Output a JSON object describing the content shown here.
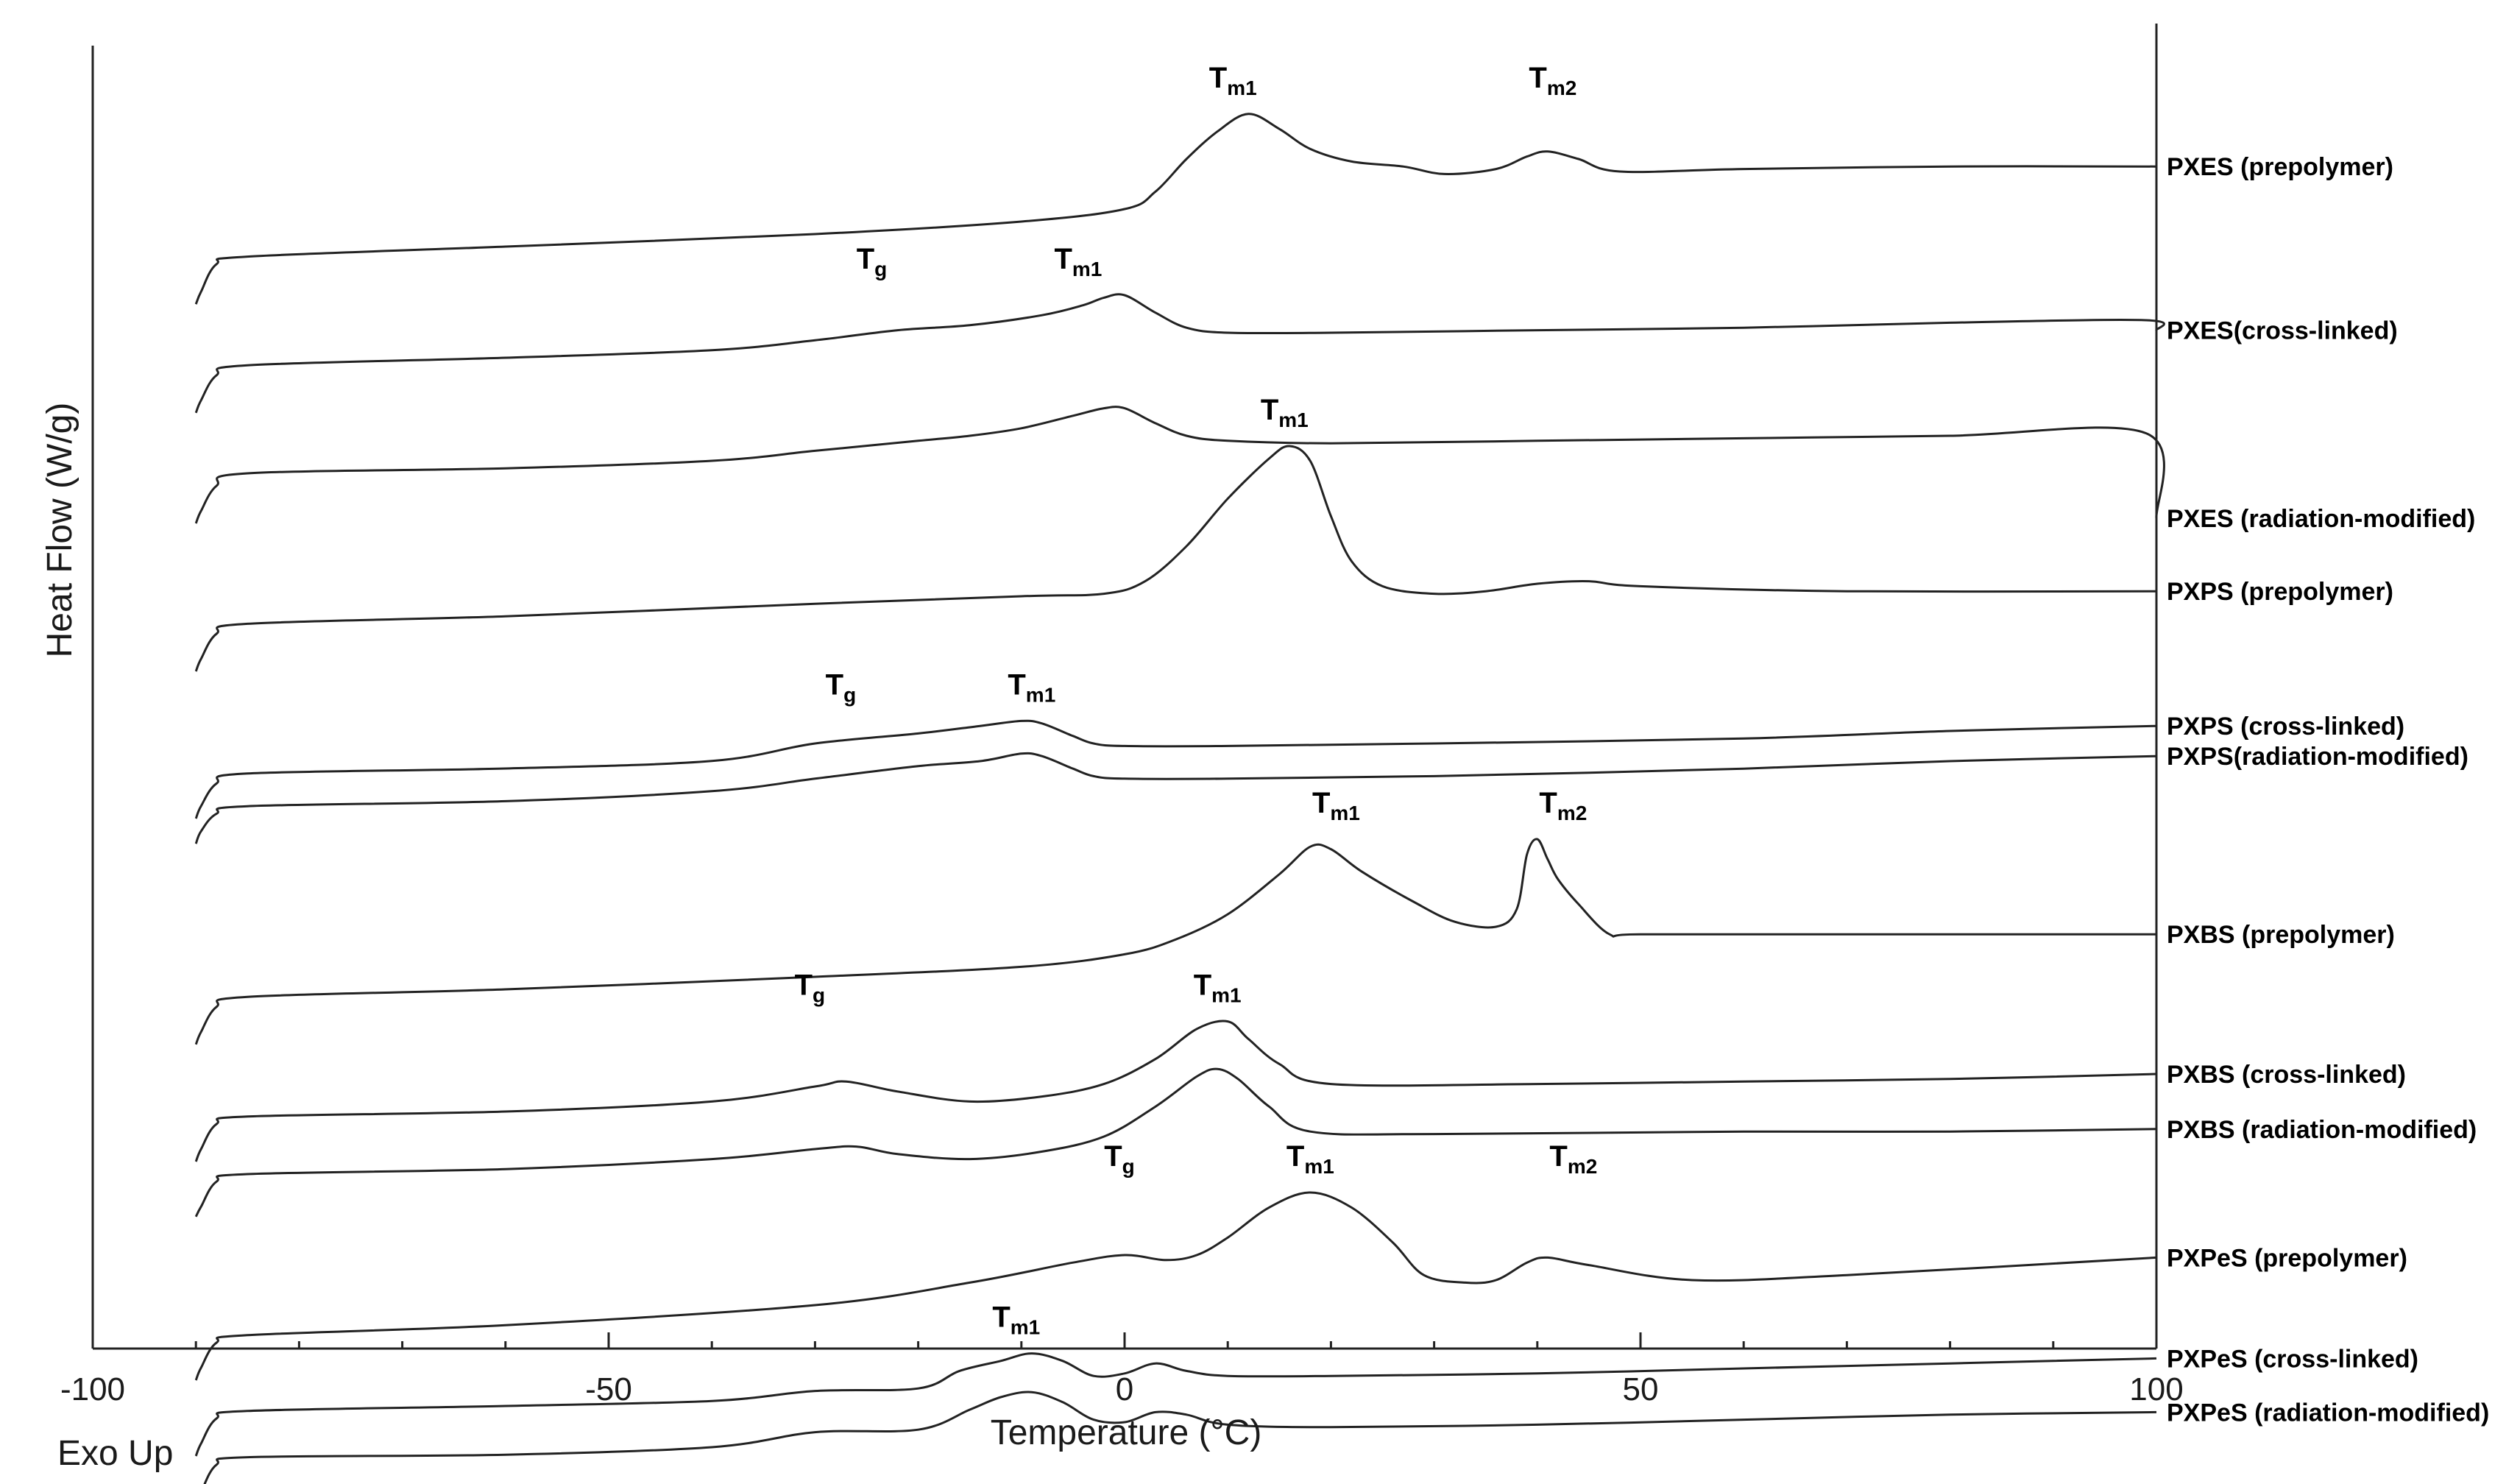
{
  "chart_data": {
    "type": "line",
    "title": "",
    "xlabel": "Temperature (°C)",
    "ylabel": "Heat Flow (W/g)",
    "corner_note": "Exo Up",
    "xlim": [
      -100,
      100
    ],
    "xticks": [
      -100,
      -50,
      0,
      50,
      100
    ],
    "y_axis_numeric_ticks": false,
    "grid": false,
    "legend": "series labels at right end of each curve",
    "series": [
      {
        "name": "PXES (prepolymer)",
        "x": [
          -90,
          -89.5,
          -88,
          -85,
          -60,
          -30,
          -10,
          0,
          3,
          6,
          9,
          12,
          15,
          18,
          22,
          27,
          31,
          36,
          39,
          41,
          44,
          48,
          60,
          80,
          100
        ],
        "y": [
          -7.8,
          -7.3,
          -6.2,
          -5.9,
          -5.5,
          -5.0,
          -4.5,
          -4.0,
          -3.3,
          -2.0,
          -0.9,
          -0.2,
          -0.8,
          -1.6,
          -2.1,
          -2.3,
          -2.6,
          -2.4,
          -1.9,
          -1.7,
          -2.0,
          -2.5,
          -2.4,
          -2.3,
          -2.3
        ]
      },
      {
        "name": "PXES(cross-linked)",
        "x": [
          -90,
          -89.5,
          -88,
          -85,
          -60,
          -40,
          -30,
          -22,
          -15,
          -8,
          -4,
          -2,
          0,
          3,
          6,
          10,
          20,
          40,
          60,
          80,
          99,
          100
        ],
        "y": [
          -6.2,
          -5.7,
          -4.7,
          -4.3,
          -4.0,
          -3.7,
          -3.3,
          -2.9,
          -2.7,
          -2.3,
          -1.9,
          -1.6,
          -1.5,
          -2.2,
          -2.8,
          -3.0,
          -3.0,
          -2.9,
          -2.8,
          -2.6,
          -2.5,
          -2.9
        ]
      },
      {
        "name": "PXES (radiation-modified)",
        "x": [
          -90,
          -89.5,
          -88,
          -85,
          -60,
          -40,
          -30,
          -20,
          -15,
          -10,
          -5,
          -2,
          0,
          3,
          6,
          10,
          20,
          40,
          60,
          80,
          99,
          100
        ],
        "y": [
          -7.5,
          -7.0,
          -6.0,
          -5.5,
          -5.3,
          -5.0,
          -4.6,
          -4.2,
          -4.0,
          -3.7,
          -3.2,
          -2.9,
          -2.9,
          -3.5,
          -4.0,
          -4.2,
          -4.3,
          -4.2,
          -4.1,
          -4.0,
          -3.9,
          -7.3
        ]
      },
      {
        "name": "PXPS (prepolymer)",
        "x": [
          -90,
          -89.5,
          -88,
          -85,
          -60,
          -30,
          -10,
          -2,
          2,
          6,
          10,
          14,
          16,
          18,
          20,
          22,
          25,
          30,
          35,
          40,
          45,
          50,
          70,
          100
        ],
        "y": [
          -8.0,
          -7.5,
          -6.5,
          -6.1,
          -5.8,
          -5.3,
          -5.0,
          -4.9,
          -4.4,
          -3.0,
          -1.1,
          0.5,
          1.0,
          0.4,
          -1.8,
          -3.6,
          -4.6,
          -4.9,
          -4.8,
          -4.5,
          -4.4,
          -4.6,
          -4.8,
          -4.8
        ]
      },
      {
        "name": "PXPS (cross-linked)",
        "x": [
          -90,
          -89.5,
          -88,
          -85,
          -60,
          -40,
          -30,
          -20,
          -14,
          -10,
          -8,
          -5,
          -3,
          0,
          10,
          30,
          60,
          80,
          100
        ],
        "y": [
          -7.0,
          -6.5,
          -5.6,
          -5.2,
          -5.0,
          -4.7,
          -4.0,
          -3.6,
          -3.3,
          -3.1,
          -3.2,
          -3.7,
          -4.0,
          -4.1,
          -4.1,
          -4.0,
          -3.8,
          -3.5,
          -3.3
        ]
      },
      {
        "name": "PXPS(radiation-modified)",
        "x": [
          -90,
          -89.5,
          -88,
          -85,
          -60,
          -40,
          -30,
          -20,
          -14,
          -10,
          -8,
          -5,
          -3,
          0,
          10,
          30,
          60,
          80,
          100
        ],
        "y": [
          -6.8,
          -6.3,
          -5.6,
          -5.3,
          -5.1,
          -4.7,
          -4.2,
          -3.7,
          -3.5,
          -3.2,
          -3.3,
          -3.8,
          -4.1,
          -4.2,
          -4.2,
          -4.1,
          -3.8,
          -3.5,
          -3.3
        ]
      },
      {
        "name": "PXBS (prepolymer)",
        "x": [
          -90,
          -89.5,
          -88,
          -85,
          -60,
          -30,
          -10,
          0,
          5,
          10,
          15,
          18,
          20,
          23,
          28,
          32,
          36,
          38,
          39,
          40,
          41,
          42,
          44,
          47,
          50,
          70,
          100
        ],
        "y": [
          -8.2,
          -7.7,
          -6.7,
          -6.3,
          -6.0,
          -5.5,
          -5.1,
          -4.6,
          -4.0,
          -3.0,
          -1.4,
          -0.3,
          -0.4,
          -1.3,
          -2.5,
          -3.3,
          -3.5,
          -2.8,
          -0.6,
          0.0,
          -0.8,
          -1.6,
          -2.6,
          -3.8,
          -3.8,
          -3.8,
          -3.8
        ]
      },
      {
        "name": "PXBS (cross-linked)",
        "x": [
          -90,
          -89.5,
          -88,
          -85,
          -60,
          -40,
          -30,
          -27,
          -22,
          -15,
          -8,
          -2,
          3,
          7,
          10,
          12,
          15,
          20,
          40,
          60,
          80,
          100
        ],
        "y": [
          -8.0,
          -7.5,
          -6.5,
          -6.2,
          -6.0,
          -5.6,
          -5.0,
          -4.8,
          -5.2,
          -5.6,
          -5.4,
          -4.9,
          -3.9,
          -2.7,
          -2.4,
          -3.1,
          -4.1,
          -4.9,
          -4.9,
          -4.8,
          -4.7,
          -4.5
        ]
      },
      {
        "name": "PXBS (radiation-modified)",
        "x": [
          -90,
          -89.5,
          -88,
          -85,
          -60,
          -40,
          -30,
          -26,
          -22,
          -15,
          -8,
          -2,
          3,
          7,
          9,
          11,
          14,
          18,
          30,
          60,
          80,
          100
        ],
        "y": [
          -8.2,
          -7.8,
          -6.8,
          -6.5,
          -6.3,
          -5.9,
          -5.5,
          -5.4,
          -5.7,
          -5.9,
          -5.6,
          -5.0,
          -3.8,
          -2.6,
          -2.3,
          -2.7,
          -3.8,
          -4.8,
          -4.9,
          -4.8,
          -4.8,
          -4.7
        ]
      },
      {
        "name": "PXPeS (prepolymer)",
        "x": [
          -90,
          -89.5,
          -88,
          -85,
          -60,
          -30,
          -15,
          -5,
          0,
          4,
          7,
          10,
          14,
          18,
          22,
          26,
          29,
          33,
          36,
          39,
          41,
          45,
          55,
          70,
          100
        ],
        "y": [
          -8.5,
          -8.0,
          -7.0,
          -6.7,
          -6.3,
          -5.5,
          -4.6,
          -3.8,
          -3.5,
          -3.7,
          -3.5,
          -2.8,
          -1.6,
          -1.0,
          -1.6,
          -3.0,
          -4.3,
          -4.6,
          -4.5,
          -3.8,
          -3.6,
          -3.9,
          -4.5,
          -4.3,
          -3.6
        ]
      },
      {
        "name": "PXPeS (cross-linked)",
        "x": [
          -90,
          -89.5,
          -88,
          -85,
          -60,
          -40,
          -30,
          -20,
          -16,
          -12,
          -9,
          -6,
          -3,
          0,
          3,
          6,
          10,
          20,
          40,
          60,
          80,
          100
        ],
        "y": [
          -7.0,
          -6.5,
          -5.5,
          -5.2,
          -5.0,
          -4.8,
          -4.4,
          -4.3,
          -3.6,
          -3.2,
          -2.9,
          -3.2,
          -3.8,
          -3.7,
          -3.3,
          -3.6,
          -3.8,
          -3.8,
          -3.7,
          -3.5,
          -3.3,
          -3.1
        ]
      },
      {
        "name": "PXPeS (radiation-modified)",
        "x": [
          -90,
          -89.5,
          -88,
          -85,
          -60,
          -40,
          -30,
          -20,
          -15,
          -12,
          -9,
          -6,
          -3,
          0,
          3,
          6,
          10,
          20,
          40,
          60,
          80,
          100
        ],
        "y": [
          -7.3,
          -6.8,
          -5.7,
          -5.4,
          -5.3,
          -5.0,
          -4.4,
          -4.3,
          -3.5,
          -3.0,
          -2.8,
          -3.2,
          -3.9,
          -4.0,
          -3.6,
          -3.7,
          -4.1,
          -4.2,
          -4.1,
          -3.9,
          -3.7,
          -3.6
        ]
      }
    ],
    "annotations": [
      {
        "main": "T",
        "sub": "m1",
        "x": 10.5,
        "series": 0
      },
      {
        "main": "T",
        "sub": "m2",
        "x": 41.5,
        "series": 0
      },
      {
        "main": "T",
        "sub": "g",
        "x": -24.5,
        "series": 1
      },
      {
        "main": "T",
        "sub": "m1",
        "x": -4.5,
        "series": 1
      },
      {
        "main": "T",
        "sub": "m1",
        "x": 15.5,
        "series": 3
      },
      {
        "main": "T",
        "sub": "g",
        "x": -27.5,
        "series": 4
      },
      {
        "main": "T",
        "sub": "m1",
        "x": -9.0,
        "series": 4
      },
      {
        "main": "T",
        "sub": "m1",
        "x": 20.5,
        "series": 6
      },
      {
        "main": "T",
        "sub": "m2",
        "x": 42.5,
        "series": 6
      },
      {
        "main": "T",
        "sub": "g",
        "x": -30.5,
        "series": 7
      },
      {
        "main": "T",
        "sub": "m1",
        "x": 9.0,
        "series": 7
      },
      {
        "main": "T",
        "sub": "g",
        "x": -0.5,
        "series": 9
      },
      {
        "main": "T",
        "sub": "m1",
        "x": 18.0,
        "series": 9
      },
      {
        "main": "T",
        "sub": "m2",
        "x": 43.5,
        "series": 9
      },
      {
        "main": "T",
        "sub": "m1",
        "x": -10.5,
        "series": 10
      }
    ]
  }
}
